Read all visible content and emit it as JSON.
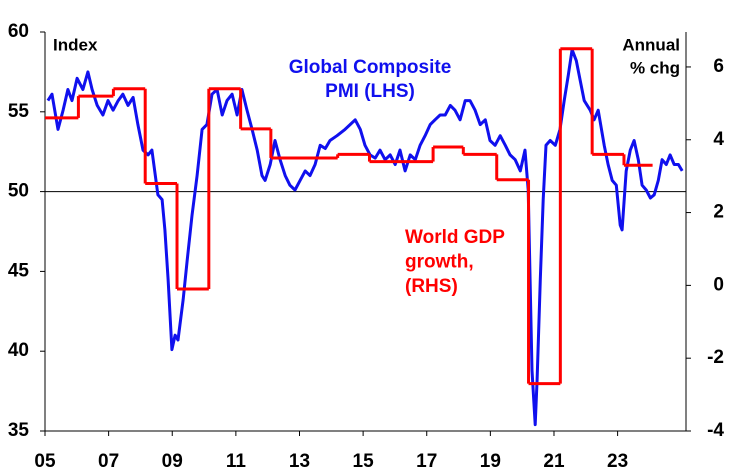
{
  "chart_data": {
    "type": "line",
    "y_label": "Index",
    "y2_label": [
      "Annual",
      "% chg"
    ],
    "xlim": [
      2005,
      2025.15
    ],
    "xticks": [
      {
        "value": 2005,
        "label": "05"
      },
      {
        "value": 2007,
        "label": "07"
      },
      {
        "value": 2009,
        "label": "09"
      },
      {
        "value": 2011,
        "label": "11"
      },
      {
        "value": 2013,
        "label": "13"
      },
      {
        "value": 2015,
        "label": "15"
      },
      {
        "value": 2017,
        "label": "17"
      },
      {
        "value": 2019,
        "label": "19"
      },
      {
        "value": 2021,
        "label": "21"
      },
      {
        "value": 2023,
        "label": "23"
      }
    ],
    "ylim": [
      35,
      60
    ],
    "yticks": [
      35,
      40,
      45,
      50,
      55,
      60
    ],
    "y2lim": [
      -4,
      6.96
    ],
    "y2ticks": [
      -4,
      -2,
      0,
      2,
      4,
      6
    ],
    "hline": 50,
    "series": [
      {
        "name": [
          "Global Composite",
          "PMI (LHS)"
        ],
        "color": "#1010ee",
        "axis": "y",
        "x": [
          2005.09,
          2005.22,
          2005.41,
          2005.57,
          2005.72,
          2005.85,
          2006.01,
          2006.19,
          2006.35,
          2006.48,
          2006.64,
          2006.82,
          2006.98,
          2007.14,
          2007.3,
          2007.45,
          2007.61,
          2007.77,
          2007.92,
          2008.08,
          2008.24,
          2008.36,
          2008.55,
          2008.68,
          2008.77,
          2008.87,
          2008.99,
          2009.09,
          2009.18,
          2009.34,
          2009.47,
          2009.62,
          2009.78,
          2009.94,
          2010.09,
          2010.25,
          2010.41,
          2010.57,
          2010.72,
          2010.88,
          2011.04,
          2011.19,
          2011.35,
          2011.51,
          2011.67,
          2011.82,
          2011.92,
          2012.08,
          2012.23,
          2012.39,
          2012.55,
          2012.7,
          2012.86,
          2013.02,
          2013.18,
          2013.33,
          2013.49,
          2013.65,
          2013.81,
          2013.96,
          2014.18,
          2014.43,
          2014.59,
          2014.75,
          2014.91,
          2015.06,
          2015.22,
          2015.38,
          2015.53,
          2015.69,
          2015.85,
          2016.01,
          2016.16,
          2016.32,
          2016.48,
          2016.64,
          2016.79,
          2016.95,
          2017.11,
          2017.26,
          2017.42,
          2017.58,
          2017.74,
          2017.89,
          2018.05,
          2018.21,
          2018.36,
          2018.52,
          2018.68,
          2018.84,
          2018.99,
          2019.15,
          2019.31,
          2019.47,
          2019.62,
          2019.78,
          2019.94,
          2020.09,
          2020.19,
          2020.31,
          2020.41,
          2020.47,
          2020.57,
          2020.66,
          2020.75,
          2020.88,
          2021.04,
          2021.19,
          2021.32,
          2021.45,
          2021.57,
          2021.7,
          2021.82,
          2021.95,
          2022.14,
          2022.26,
          2022.39,
          2022.58,
          2022.7,
          2022.83,
          2022.96,
          2023.08,
          2023.14,
          2023.27,
          2023.4,
          2023.52,
          2023.65,
          2023.77,
          2023.9,
          2024.03,
          2024.15,
          2024.28,
          2024.4,
          2024.53,
          2024.65,
          2024.78,
          2024.91,
          2025.03
        ],
        "values": [
          55.7,
          56.1,
          53.9,
          55.1,
          56.4,
          55.7,
          57.1,
          56.4,
          57.5,
          56.4,
          55.4,
          54.8,
          55.7,
          55.1,
          55.7,
          56.1,
          55.4,
          55.9,
          54.2,
          52.6,
          52.3,
          52.6,
          49.8,
          49.5,
          47.6,
          44.5,
          40.1,
          41.0,
          40.7,
          43.2,
          45.7,
          48.5,
          51.0,
          53.9,
          54.2,
          56.1,
          56.4,
          54.8,
          55.7,
          56.1,
          54.8,
          56.4,
          55.1,
          53.9,
          52.6,
          51.0,
          50.7,
          51.7,
          53.2,
          52.0,
          51.0,
          50.4,
          50.1,
          50.7,
          51.3,
          51.0,
          51.7,
          52.9,
          52.7,
          53.2,
          53.5,
          53.9,
          54.2,
          54.5,
          53.9,
          52.9,
          52.3,
          52.1,
          52.6,
          52.0,
          52.3,
          51.7,
          52.6,
          51.3,
          52.3,
          52.0,
          52.9,
          53.5,
          54.2,
          54.5,
          54.8,
          54.8,
          55.4,
          55.1,
          54.5,
          55.7,
          55.7,
          55.1,
          54.2,
          54.5,
          53.2,
          52.9,
          53.5,
          52.9,
          52.3,
          52.0,
          51.3,
          52.6,
          50.1,
          38.8,
          35.4,
          38.2,
          44.5,
          49.5,
          52.9,
          53.2,
          52.9,
          53.9,
          55.7,
          57.3,
          58.9,
          58.2,
          57.0,
          55.7,
          55.1,
          54.5,
          55.1,
          52.9,
          51.7,
          50.7,
          50.4,
          47.9,
          47.6,
          51.3,
          52.6,
          53.2,
          52.0,
          50.4,
          50.1,
          49.6,
          49.8,
          50.7,
          52.0,
          51.7,
          52.3,
          51.7,
          51.7,
          51.3
        ]
      },
      {
        "name": [
          "World GDP",
          "growth,",
          "(RHS)"
        ],
        "color": "#ff0000",
        "axis": "y2",
        "step": true,
        "edges": [
          2005,
          2006.05,
          2007.15,
          2008.15,
          2009.15,
          2010.15,
          2011.15,
          2012.1,
          2014.2,
          2015.2,
          2017.2,
          2018.15,
          2019.2,
          2020.2,
          2021.2,
          2022.2,
          2023.2,
          2024.1
        ],
        "values": [
          4.6,
          5.2,
          5.4,
          2.8,
          -0.1,
          5.4,
          4.3,
          3.5,
          3.6,
          3.4,
          3.8,
          3.6,
          2.9,
          -2.7,
          6.5,
          3.6,
          3.3
        ]
      }
    ]
  }
}
